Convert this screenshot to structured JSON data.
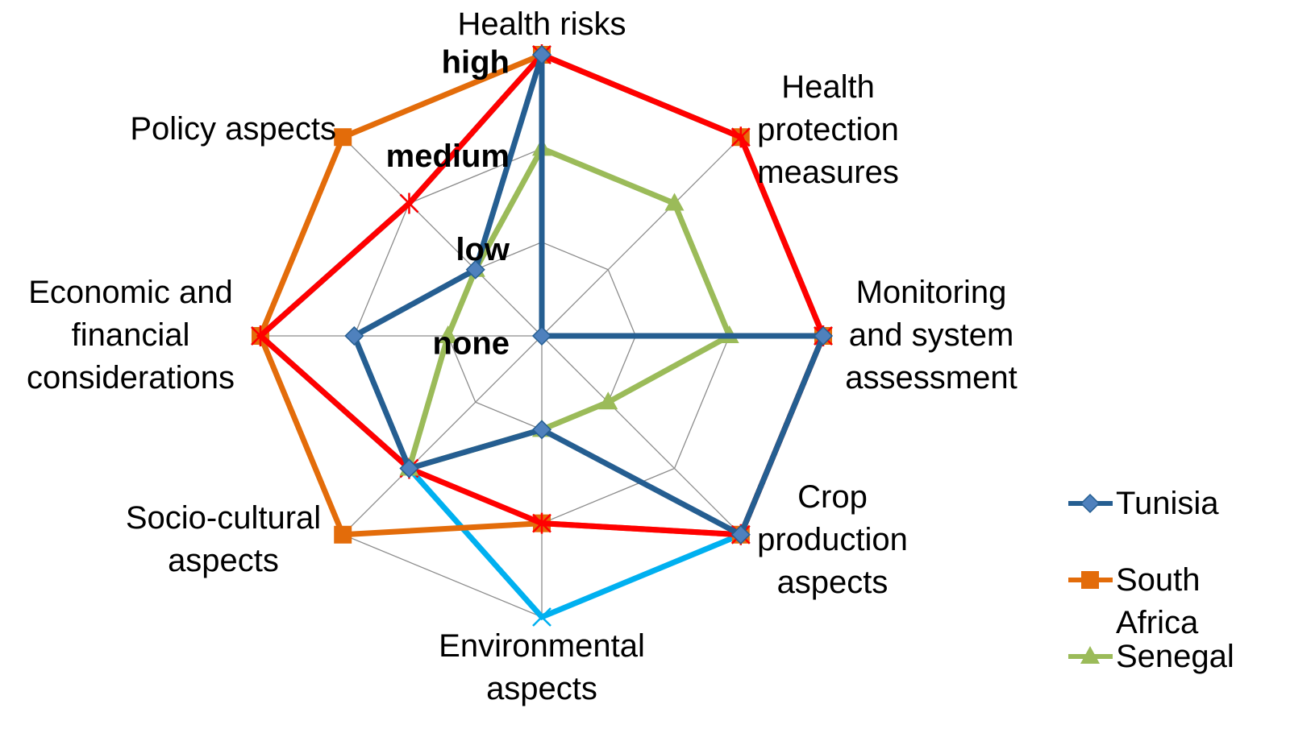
{
  "chart_data": {
    "type": "radar",
    "categories": [
      "Health risks",
      "Health protection measures",
      "Monitoring and system assessment",
      "Crop production aspects",
      "Environmental aspects",
      "Socio-cultural aspects",
      "Economic and financial considerations",
      "Policy aspects"
    ],
    "rlim": [
      0,
      3
    ],
    "rticks": [
      {
        "value": 0,
        "label": "none"
      },
      {
        "value": 1,
        "label": "low"
      },
      {
        "value": 2,
        "label": "medium"
      },
      {
        "value": 3,
        "label": "high"
      }
    ],
    "grid": true,
    "legend": "right",
    "series": [
      {
        "color": "#00b0f0",
        "marker": "x",
        "values": [
          3,
          3,
          3,
          3,
          3,
          2,
          3,
          2
        ]
      },
      {
        "name": "South Africa",
        "color": "#e36c0a",
        "marker": "square",
        "values": [
          3,
          3,
          3,
          3,
          2,
          3,
          3,
          3
        ]
      },
      {
        "color": "#ff0000",
        "marker": "star",
        "values": [
          3,
          3,
          3,
          3,
          2,
          2,
          3,
          2
        ]
      },
      {
        "name": "Senegal",
        "color": "#9bbb59",
        "marker": "triangle",
        "values": [
          2,
          2,
          2,
          1,
          1,
          2,
          1,
          1
        ]
      },
      {
        "name": "Tunisia",
        "color": "#255e91",
        "marker": "diamond",
        "values": [
          3,
          0,
          3,
          3,
          1,
          2,
          2,
          1
        ]
      }
    ]
  }
}
